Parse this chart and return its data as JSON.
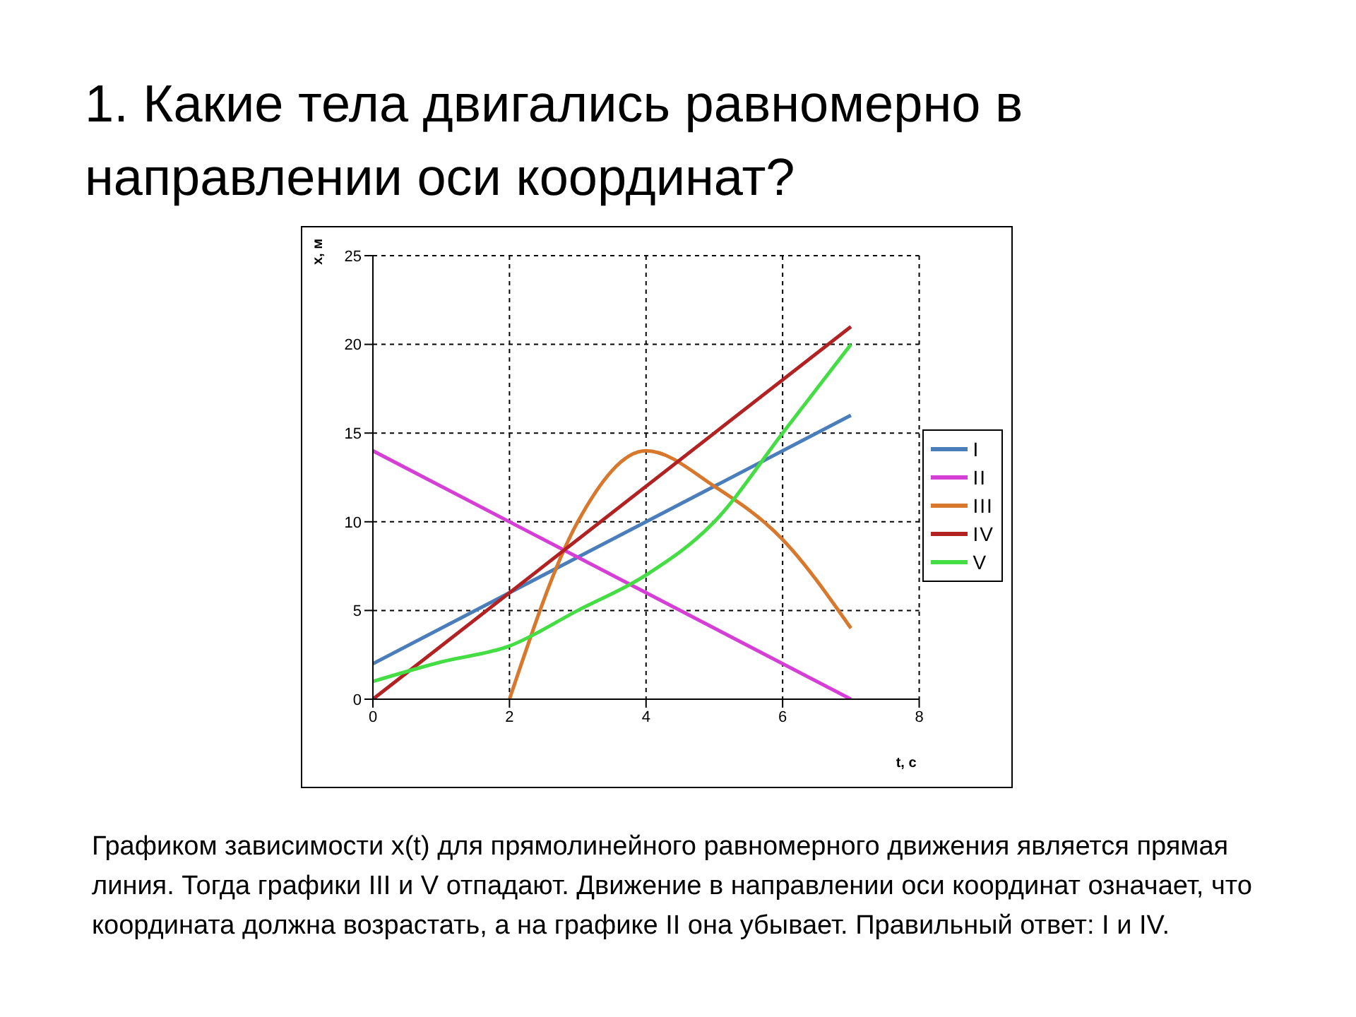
{
  "chart_data": {
    "type": "line",
    "title": "1. Какие тела двигались равномерно в направлении оси координат?",
    "xlabel": "t, с",
    "ylabel": "x, м",
    "xlim": [
      0,
      8
    ],
    "xticks": [
      0,
      2,
      4,
      6,
      8
    ],
    "ylim": [
      0,
      25
    ],
    "yticks": [
      0,
      5,
      10,
      15,
      20,
      25
    ],
    "grid": true,
    "legend": "right",
    "marker": "none",
    "line_style": "solid",
    "series": [
      {
        "name": "I",
        "color": "#4a7ebb",
        "x": [
          0,
          7
        ],
        "values": [
          2,
          16
        ]
      },
      {
        "name": "II",
        "color": "#d63fd6",
        "x": [
          0,
          7
        ],
        "values": [
          14,
          0
        ]
      },
      {
        "name": "III",
        "color": "#d8782c",
        "x": [
          2,
          3,
          4,
          5,
          6,
          7
        ],
        "values": [
          0,
          10,
          14,
          12,
          9,
          4
        ]
      },
      {
        "name": "IV",
        "color": "#b22222",
        "x": [
          0,
          7
        ],
        "values": [
          0,
          21
        ]
      },
      {
        "name": "V",
        "color": "#44dd44",
        "x": [
          0,
          1,
          2,
          3,
          4,
          5,
          6,
          7
        ],
        "values": [
          1,
          2.1,
          3,
          5,
          7,
          10,
          15,
          20
        ]
      }
    ],
    "annotations": [
      "Графиком зависимости x(t) для прямолинейного равномерного движения является прямая линия. Тогда графики III и V отпадают. Движение в направлении оси координат означает, что координата должна возрастать, а на графике II она убывает. Правильный ответ: I и IV."
    ]
  }
}
